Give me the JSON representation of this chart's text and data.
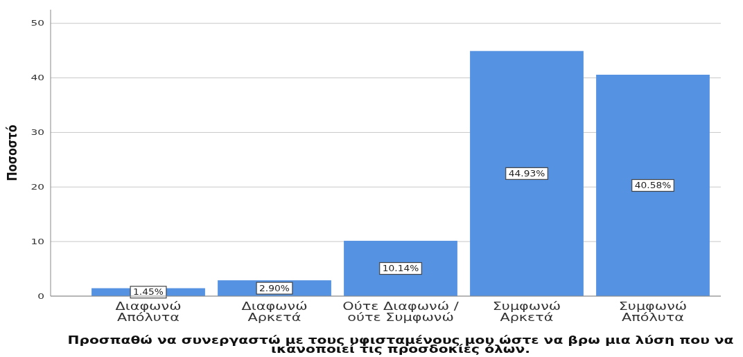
{
  "chart_data": {
    "type": "bar",
    "xlabel": "Προσπαθώ να συνεργαστώ με τους υφισταμένους μου ώστε να βρω μια λύση που να ικανοποιεί τις προσδοκίες όλων.",
    "ylabel": "Ποσοστό",
    "categories": [
      "Διαφωνώ Απόλυτα",
      "Διαφωνώ Αρκετά",
      "Ούτε Διαφωνώ / ούτε Συμφωνώ",
      "Συμφωνώ Αρκετά",
      "Συμφωνώ Απόλυτα"
    ],
    "values": [
      1.45,
      2.9,
      10.14,
      44.93,
      40.58
    ],
    "value_labels": [
      "1.45%",
      "2.90%",
      "10.14%",
      "44.93%",
      "40.58%"
    ],
    "color": "#5592e1",
    "ylim": [
      0,
      52.5
    ],
    "yticks": [
      0,
      10,
      20,
      30,
      40,
      50
    ],
    "grid": "y"
  }
}
